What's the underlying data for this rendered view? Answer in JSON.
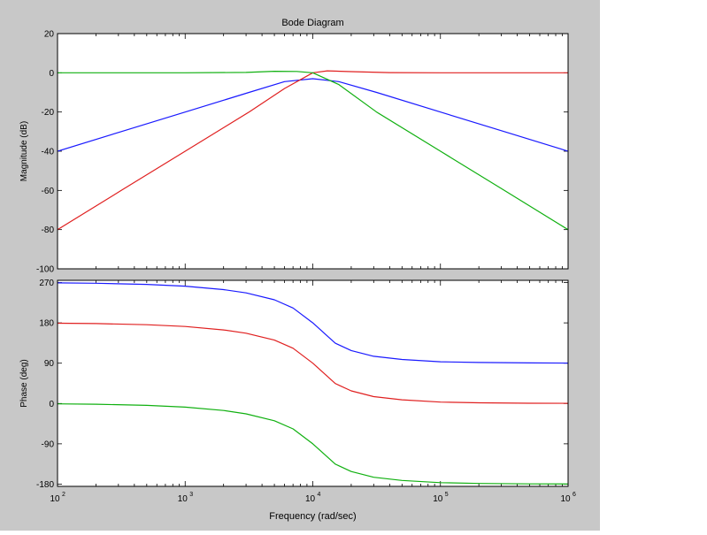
{
  "figure_background": "#c8c8c8",
  "chart_data": {
    "type": "line",
    "title": "Bode Diagram",
    "xlabel": "Frequency  (rad/sec)",
    "xscale": "log",
    "xlim": [
      100,
      1000000
    ],
    "x_ticks": [
      {
        "value": 100,
        "base": "10",
        "exp": "2"
      },
      {
        "value": 1000,
        "base": "10",
        "exp": "3"
      },
      {
        "value": 10000,
        "base": "10",
        "exp": "4"
      },
      {
        "value": 100000,
        "base": "10",
        "exp": "5"
      },
      {
        "value": 1000000,
        "base": "10",
        "exp": "6"
      }
    ],
    "colors": {
      "blue": "#1a1aff",
      "red": "#e02020",
      "green": "#10b010"
    },
    "panels": [
      {
        "name": "magnitude",
        "ylabel": "Magnitude (dB)",
        "ylim": [
          -100,
          20
        ],
        "yticks": [
          20,
          0,
          -20,
          -40,
          -60,
          -80,
          -100
        ],
        "series": [
          {
            "color": "#1a1aff",
            "points": [
              [
                100,
                -40
              ],
              [
                316,
                -30
              ],
              [
                1000,
                -20
              ],
              [
                3162,
                -10
              ],
              [
                6000,
                -4.5
              ],
              [
                10000,
                -3
              ],
              [
                16000,
                -4.5
              ],
              [
                31623,
                -10
              ],
              [
                100000,
                -20
              ],
              [
                316228,
                -30
              ],
              [
                1000000,
                -40
              ]
            ]
          },
          {
            "color": "#e02020",
            "points": [
              [
                100,
                -80
              ],
              [
                316,
                -60
              ],
              [
                1000,
                -40
              ],
              [
                3162,
                -20
              ],
              [
                6000,
                -8
              ],
              [
                10000,
                0
              ],
              [
                13000,
                1
              ],
              [
                20000,
                0.6
              ],
              [
                40000,
                0.1
              ],
              [
                100000,
                0
              ],
              [
                1000000,
                0
              ]
            ]
          },
          {
            "color": "#10b010",
            "points": [
              [
                100,
                0
              ],
              [
                1000,
                0
              ],
              [
                3000,
                0.2
              ],
              [
                5000,
                0.8
              ],
              [
                7500,
                0.7
              ],
              [
                10000,
                0
              ],
              [
                16000,
                -6
              ],
              [
                31623,
                -20
              ],
              [
                100000,
                -40
              ],
              [
                316228,
                -60
              ],
              [
                1000000,
                -80
              ]
            ]
          }
        ]
      },
      {
        "name": "phase",
        "ylabel": "Phase (deg)",
        "ylim": [
          -185,
          275
        ],
        "yticks": [
          270,
          180,
          90,
          0,
          -90,
          -180
        ],
        "series": [
          {
            "color": "#1a1aff",
            "points": [
              [
                100,
                269.2
              ],
              [
                200,
                268.4
              ],
              [
                500,
                265.9
              ],
              [
                1000,
                261.9
              ],
              [
                2000,
                254.3
              ],
              [
                3000,
                246.9
              ],
              [
                5000,
                231.5
              ],
              [
                7000,
                213.3
              ],
              [
                10000,
                180
              ],
              [
                15000,
                134.7
              ],
              [
                20000,
                118.2
              ],
              [
                30000,
                105.4
              ],
              [
                50000,
                98.3
              ],
              [
                100000,
                93.2
              ],
              [
                200000,
                91.5
              ],
              [
                500000,
                90.6
              ],
              [
                1000000,
                90.3
              ]
            ]
          },
          {
            "color": "#e02020",
            "points": [
              [
                100,
                179.2
              ],
              [
                200,
                178.4
              ],
              [
                500,
                175.9
              ],
              [
                1000,
                171.9
              ],
              [
                2000,
                164.3
              ],
              [
                3000,
                156.9
              ],
              [
                5000,
                141.5
              ],
              [
                7000,
                123.3
              ],
              [
                10000,
                90
              ],
              [
                15000,
                44.7
              ],
              [
                20000,
                28.2
              ],
              [
                30000,
                15.4
              ],
              [
                50000,
                8.3
              ],
              [
                100000,
                3.2
              ],
              [
                200000,
                1.5
              ],
              [
                500000,
                0.6
              ],
              [
                1000000,
                0.3
              ]
            ]
          },
          {
            "color": "#10b010",
            "points": [
              [
                100,
                -0.8
              ],
              [
                200,
                -1.6
              ],
              [
                500,
                -4.1
              ],
              [
                1000,
                -8.1
              ],
              [
                2000,
                -15.7
              ],
              [
                3000,
                -23.1
              ],
              [
                5000,
                -38.5
              ],
              [
                7000,
                -56.7
              ],
              [
                10000,
                -90
              ],
              [
                15000,
                -135.3
              ],
              [
                20000,
                -151.8
              ],
              [
                30000,
                -164.6
              ],
              [
                50000,
                -171.7
              ],
              [
                100000,
                -176.8
              ],
              [
                200000,
                -178.5
              ],
              [
                500000,
                -179.4
              ],
              [
                1000000,
                -179.7
              ]
            ]
          }
        ]
      }
    ]
  }
}
